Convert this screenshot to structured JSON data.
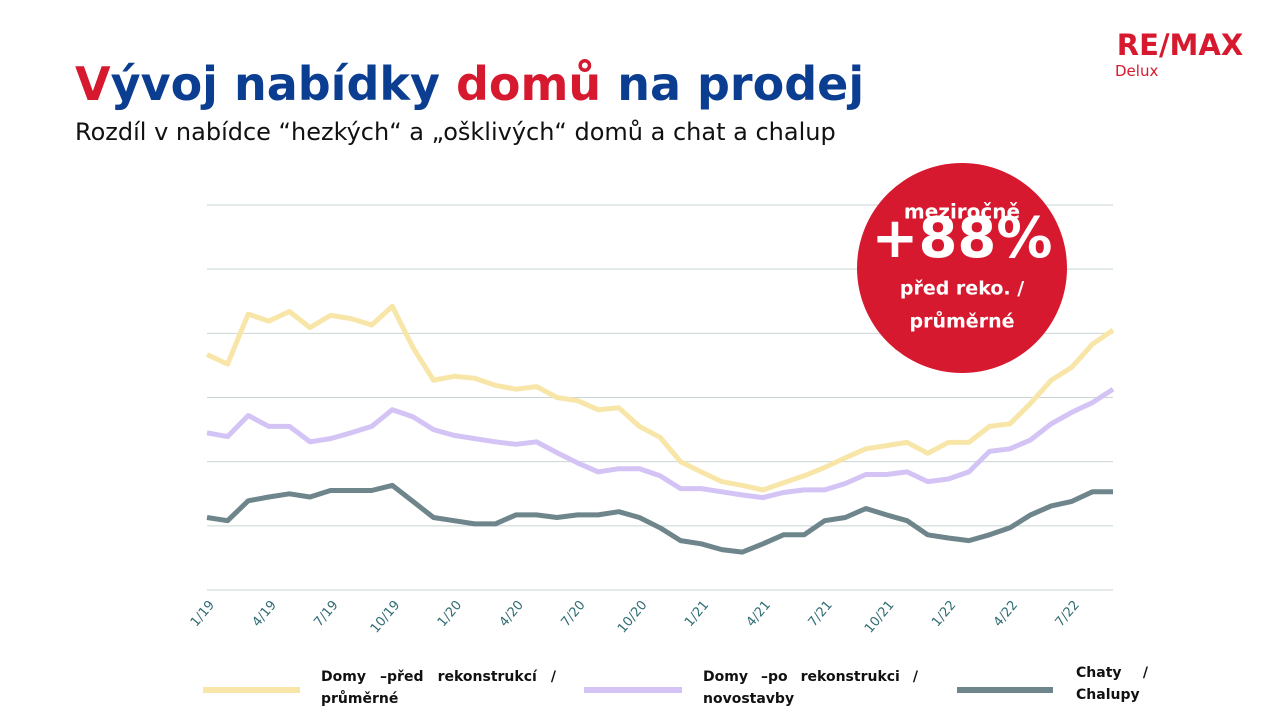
{
  "logo": {
    "brand": "RE/MAX",
    "office": "Delux"
  },
  "chart_data": {
    "type": "line",
    "title": [
      {
        "text": "V",
        "color": "#d7192f"
      },
      {
        "text": "ývoj nabídky ",
        "color": "#0b3d91"
      },
      {
        "text": "domů",
        "color": "#d7192f"
      },
      {
        "text": " na prodej",
        "color": "#0b3d91"
      }
    ],
    "subtitle": "Rozdíl v nabídce “hezkých“ a „ošklivých“ domů a chat a chalup",
    "annotation": {
      "lines": [
        "meziročně",
        "+88%",
        "před reko. /",
        "průměrné"
      ],
      "color": "#d7192f"
    },
    "categories": [
      "1/19",
      null,
      null,
      "4/19",
      null,
      null,
      "7/19",
      null,
      null,
      "10/19",
      null,
      null,
      "1/20",
      null,
      null,
      "4/20",
      null,
      null,
      "7/20",
      null,
      null,
      "10/20",
      null,
      null,
      "1/21",
      null,
      null,
      "4/21",
      null,
      null,
      "7/21",
      null,
      null,
      "10/21",
      null,
      null,
      "1/22",
      null,
      null,
      "4/22",
      null,
      null,
      "7/22",
      null,
      null
    ],
    "ylim": [
      0,
      6
    ],
    "yticks": [
      0,
      1,
      2,
      3,
      4,
      5,
      6
    ],
    "grid": true,
    "series": [
      {
        "name": "Domy –před rekonstrukcí / průměrné",
        "color": "#f8e6a8",
        "values": [
          3.67,
          3.52,
          4.3,
          4.19,
          4.34,
          4.09,
          4.28,
          4.23,
          4.13,
          4.42,
          3.78,
          3.27,
          3.33,
          3.3,
          3.19,
          3.13,
          3.17,
          3.0,
          2.95,
          2.81,
          2.84,
          2.55,
          2.38,
          2.0,
          1.84,
          1.69,
          1.63,
          1.56,
          1.67,
          1.78,
          1.91,
          2.06,
          2.2,
          2.25,
          2.3,
          2.13,
          2.3,
          2.3,
          2.55,
          2.59,
          2.91,
          3.27,
          3.47,
          3.83,
          4.05
        ]
      },
      {
        "name": "Domy –po rekonstrukci / novostavby",
        "color": "#d3c4f5",
        "values": [
          2.45,
          2.39,
          2.72,
          2.55,
          2.55,
          2.31,
          2.36,
          2.45,
          2.55,
          2.81,
          2.7,
          2.5,
          2.41,
          2.36,
          2.31,
          2.27,
          2.31,
          2.14,
          1.98,
          1.84,
          1.89,
          1.89,
          1.78,
          1.58,
          1.58,
          1.53,
          1.48,
          1.44,
          1.52,
          1.56,
          1.56,
          1.66,
          1.8,
          1.8,
          1.84,
          1.69,
          1.73,
          1.84,
          2.16,
          2.2,
          2.34,
          2.59,
          2.77,
          2.92,
          3.13
        ]
      },
      {
        "name": "Chaty / Chalupy",
        "color": "#6e858b",
        "values": [
          1.13,
          1.08,
          1.39,
          1.45,
          1.5,
          1.45,
          1.55,
          1.55,
          1.55,
          1.63,
          1.38,
          1.13,
          1.08,
          1.03,
          1.03,
          1.17,
          1.17,
          1.13,
          1.17,
          1.17,
          1.22,
          1.13,
          0.97,
          0.77,
          0.72,
          0.63,
          0.59,
          0.72,
          0.86,
          0.86,
          1.08,
          1.13,
          1.27,
          1.17,
          1.08,
          0.86,
          0.81,
          0.77,
          0.86,
          0.97,
          1.17,
          1.31,
          1.38,
          1.53,
          1.53
        ]
      }
    ]
  }
}
